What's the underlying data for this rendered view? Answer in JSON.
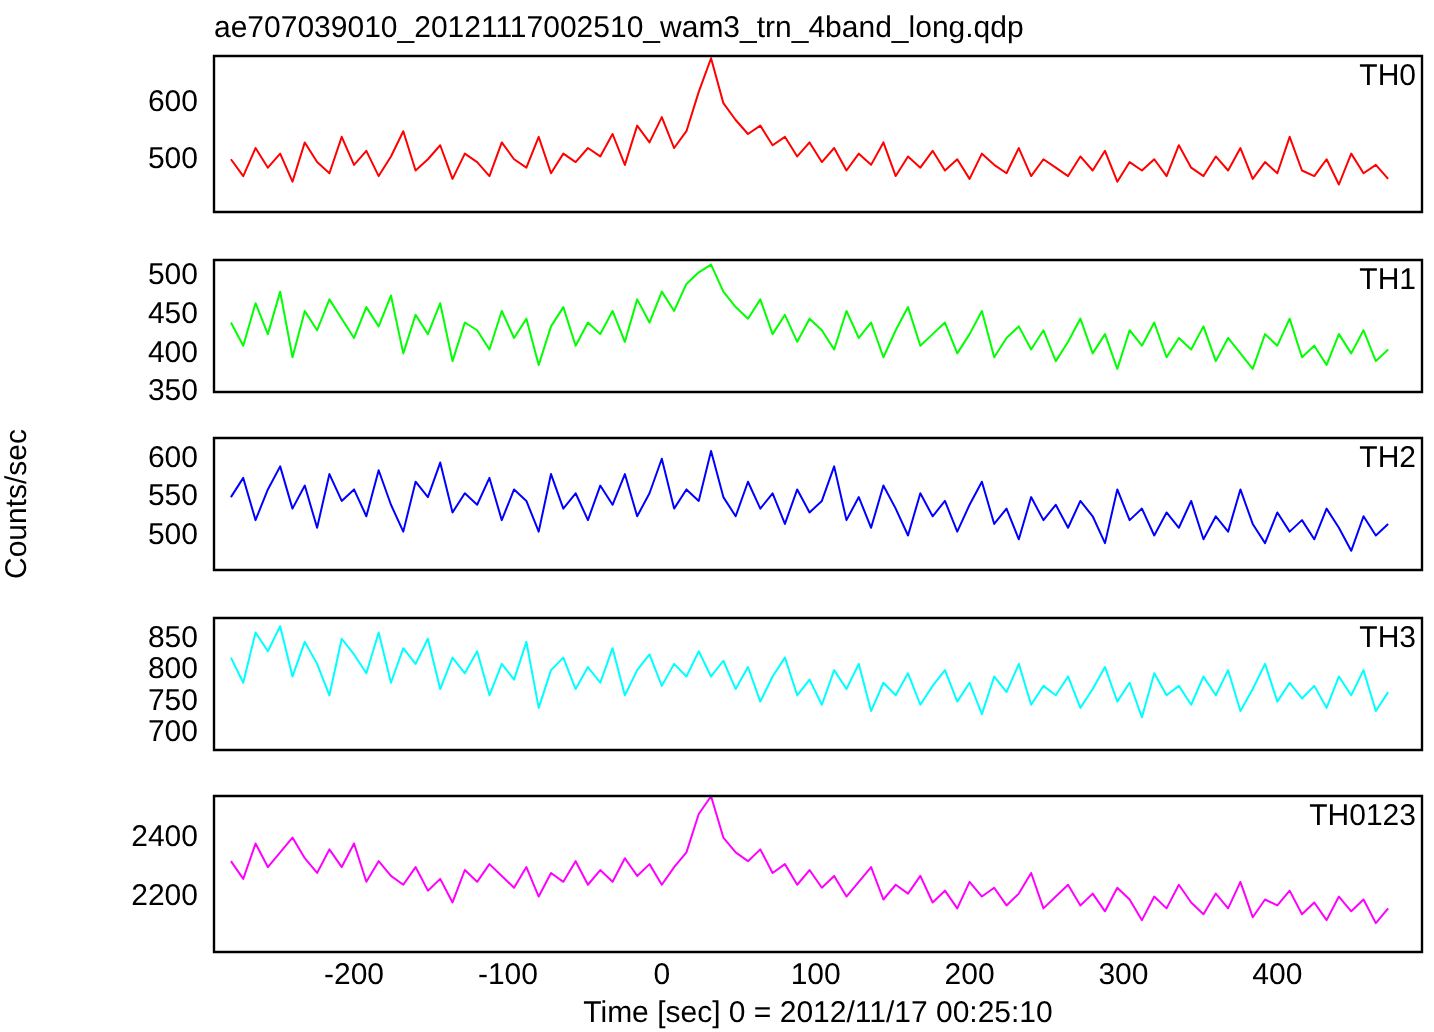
{
  "chart_data": [
    {
      "type": "line",
      "title": "ae707039010_20121117002510_wam3_trn_4band_long.qdp",
      "tick_labels": "y",
      "marker": "none",
      "line_style": "solid",
      "xlim": [
        -291,
        494
      ],
      "xticks": [
        -200,
        -100,
        0,
        100,
        200,
        300,
        400
      ],
      "ylim": [
        406,
        684
      ],
      "yticks": [
        500,
        600
      ],
      "x": [
        -280,
        -272,
        -264,
        -256,
        -248,
        -240,
        -232,
        -224,
        -216,
        -208,
        -200,
        -192,
        -184,
        -176,
        -168,
        -160,
        -152,
        -144,
        -136,
        -128,
        -120,
        -112,
        -104,
        -96,
        -88,
        -80,
        -72,
        -64,
        -56,
        -48,
        -40,
        -32,
        -24,
        -16,
        -8,
        0,
        8,
        16,
        24,
        32,
        40,
        48,
        56,
        64,
        72,
        80,
        88,
        96,
        104,
        112,
        120,
        128,
        136,
        144,
        152,
        160,
        168,
        176,
        184,
        192,
        200,
        208,
        216,
        224,
        232,
        240,
        248,
        256,
        264,
        272,
        280,
        288,
        296,
        304,
        312,
        320,
        328,
        336,
        344,
        352,
        360,
        368,
        376,
        384,
        392,
        400,
        408,
        416,
        424,
        432,
        440,
        448,
        456,
        464,
        472
      ],
      "series": [
        {
          "name": "TH0",
          "color": "#ff0000",
          "values": [
            500,
            470,
            520,
            485,
            510,
            460,
            530,
            495,
            475,
            540,
            490,
            515,
            470,
            505,
            550,
            480,
            500,
            525,
            465,
            510,
            495,
            470,
            530,
            500,
            485,
            540,
            475,
            510,
            495,
            520,
            505,
            545,
            490,
            560,
            530,
            575,
            520,
            550,
            620,
            680,
            600,
            570,
            545,
            560,
            525,
            540,
            505,
            530,
            495,
            520,
            480,
            510,
            490,
            530,
            470,
            505,
            485,
            515,
            480,
            500,
            465,
            510,
            490,
            475,
            520,
            470,
            500,
            485,
            470,
            505,
            480,
            515,
            460,
            495,
            480,
            500,
            470,
            525,
            485,
            470,
            505,
            480,
            520,
            465,
            495,
            475,
            540,
            480,
            470,
            500,
            455,
            510,
            475,
            490,
            465
          ]
        }
      ]
    },
    {
      "type": "line",
      "tick_labels": "y",
      "marker": "none",
      "line_style": "solid",
      "xlim": [
        -291,
        494
      ],
      "xticks": [
        -200,
        -100,
        0,
        100,
        200,
        300,
        400
      ],
      "ylim": [
        350,
        521
      ],
      "yticks": [
        350,
        400,
        450,
        500
      ],
      "x": [
        -280,
        -272,
        -264,
        -256,
        -248,
        -240,
        -232,
        -224,
        -216,
        -208,
        -200,
        -192,
        -184,
        -176,
        -168,
        -160,
        -152,
        -144,
        -136,
        -128,
        -120,
        -112,
        -104,
        -96,
        -88,
        -80,
        -72,
        -64,
        -56,
        -48,
        -40,
        -32,
        -24,
        -16,
        -8,
        0,
        8,
        16,
        24,
        32,
        40,
        48,
        56,
        64,
        72,
        80,
        88,
        96,
        104,
        112,
        120,
        128,
        136,
        144,
        152,
        160,
        168,
        176,
        184,
        192,
        200,
        208,
        216,
        224,
        232,
        240,
        248,
        256,
        264,
        272,
        280,
        288,
        296,
        304,
        312,
        320,
        328,
        336,
        344,
        352,
        360,
        368,
        376,
        384,
        392,
        400,
        408,
        416,
        424,
        432,
        440,
        448,
        456,
        464,
        472
      ],
      "series": [
        {
          "name": "TH1",
          "color": "#00ff00",
          "values": [
            440,
            410,
            465,
            425,
            480,
            395,
            455,
            430,
            470,
            445,
            420,
            460,
            435,
            475,
            400,
            450,
            425,
            465,
            390,
            440,
            430,
            405,
            455,
            420,
            445,
            385,
            435,
            460,
            410,
            440,
            425,
            455,
            415,
            470,
            440,
            480,
            455,
            490,
            505,
            515,
            480,
            460,
            445,
            470,
            425,
            450,
            415,
            445,
            430,
            405,
            455,
            420,
            440,
            395,
            430,
            460,
            410,
            425,
            440,
            400,
            425,
            455,
            395,
            420,
            435,
            405,
            430,
            390,
            415,
            445,
            400,
            425,
            380,
            430,
            410,
            440,
            395,
            420,
            405,
            435,
            390,
            420,
            400,
            380,
            425,
            410,
            445,
            395,
            410,
            385,
            425,
            400,
            430,
            390,
            405
          ]
        }
      ]
    },
    {
      "type": "line",
      "tick_labels": "y",
      "marker": "none",
      "line_style": "solid",
      "ylabel": "Counts/sec",
      "xlim": [
        -291,
        494
      ],
      "xticks": [
        -200,
        -100,
        0,
        100,
        200,
        300,
        400
      ],
      "ylim": [
        455,
        627
      ],
      "yticks": [
        500,
        550,
        600
      ],
      "x": [
        -280,
        -272,
        -264,
        -256,
        -248,
        -240,
        -232,
        -224,
        -216,
        -208,
        -200,
        -192,
        -184,
        -176,
        -168,
        -160,
        -152,
        -144,
        -136,
        -128,
        -120,
        -112,
        -104,
        -96,
        -88,
        -80,
        -72,
        -64,
        -56,
        -48,
        -40,
        -32,
        -24,
        -16,
        -8,
        0,
        8,
        16,
        24,
        32,
        40,
        48,
        56,
        64,
        72,
        80,
        88,
        96,
        104,
        112,
        120,
        128,
        136,
        144,
        152,
        160,
        168,
        176,
        184,
        192,
        200,
        208,
        216,
        224,
        232,
        240,
        248,
        256,
        264,
        272,
        280,
        288,
        296,
        304,
        312,
        320,
        328,
        336,
        344,
        352,
        360,
        368,
        376,
        384,
        392,
        400,
        408,
        416,
        424,
        432,
        440,
        448,
        456,
        464,
        472
      ],
      "series": [
        {
          "name": "TH2",
          "color": "#0000ff",
          "values": [
            550,
            575,
            520,
            560,
            590,
            535,
            565,
            510,
            580,
            545,
            560,
            525,
            585,
            540,
            505,
            570,
            550,
            595,
            530,
            555,
            540,
            575,
            520,
            560,
            545,
            505,
            580,
            535,
            555,
            520,
            565,
            540,
            580,
            525,
            555,
            600,
            535,
            560,
            545,
            610,
            550,
            525,
            570,
            535,
            555,
            515,
            560,
            530,
            545,
            590,
            520,
            550,
            510,
            565,
            535,
            500,
            555,
            525,
            545,
            505,
            540,
            570,
            515,
            535,
            495,
            550,
            520,
            540,
            510,
            545,
            525,
            490,
            560,
            520,
            535,
            500,
            530,
            510,
            545,
            495,
            525,
            505,
            560,
            515,
            490,
            530,
            505,
            520,
            495,
            535,
            510,
            480,
            525,
            500,
            515
          ]
        }
      ]
    },
    {
      "type": "line",
      "tick_labels": "y",
      "marker": "none",
      "line_style": "solid",
      "xlim": [
        -291,
        494
      ],
      "xticks": [
        -200,
        -100,
        0,
        100,
        200,
        300,
        400
      ],
      "ylim": [
        673,
        883
      ],
      "yticks": [
        700,
        750,
        800,
        850
      ],
      "x": [
        -280,
        -272,
        -264,
        -256,
        -248,
        -240,
        -232,
        -224,
        -216,
        -208,
        -200,
        -192,
        -184,
        -176,
        -168,
        -160,
        -152,
        -144,
        -136,
        -128,
        -120,
        -112,
        -104,
        -96,
        -88,
        -80,
        -72,
        -64,
        -56,
        -48,
        -40,
        -32,
        -24,
        -16,
        -8,
        0,
        8,
        16,
        24,
        32,
        40,
        48,
        56,
        64,
        72,
        80,
        88,
        96,
        104,
        112,
        120,
        128,
        136,
        144,
        152,
        160,
        168,
        176,
        184,
        192,
        200,
        208,
        216,
        224,
        232,
        240,
        248,
        256,
        264,
        272,
        280,
        288,
        296,
        304,
        312,
        320,
        328,
        336,
        344,
        352,
        360,
        368,
        376,
        384,
        392,
        400,
        408,
        416,
        424,
        432,
        440,
        448,
        456,
        464,
        472
      ],
      "series": [
        {
          "name": "TH3",
          "color": "#00ffff",
          "values": [
            820,
            780,
            860,
            830,
            870,
            790,
            845,
            810,
            760,
            850,
            825,
            795,
            860,
            780,
            835,
            810,
            850,
            770,
            820,
            795,
            830,
            760,
            810,
            785,
            845,
            740,
            800,
            820,
            770,
            805,
            780,
            835,
            760,
            800,
            825,
            775,
            810,
            790,
            830,
            790,
            815,
            770,
            805,
            750,
            790,
            820,
            760,
            785,
            745,
            800,
            770,
            810,
            735,
            780,
            760,
            795,
            745,
            775,
            800,
            750,
            780,
            730,
            790,
            765,
            810,
            745,
            775,
            760,
            790,
            740,
            770,
            805,
            750,
            780,
            725,
            795,
            760,
            775,
            745,
            790,
            760,
            800,
            735,
            770,
            810,
            750,
            780,
            755,
            775,
            740,
            790,
            760,
            800,
            735,
            765
          ]
        }
      ]
    },
    {
      "type": "line",
      "xlabel": "Time [sec] 0 = 2012/11/17 00:25:10",
      "marker": "none",
      "line_style": "solid",
      "xlim": [
        -291,
        494
      ],
      "xticks": [
        -200,
        -100,
        0,
        100,
        200,
        300,
        400
      ],
      "ylim": [
        2012,
        2541
      ],
      "yticks": [
        2200,
        2400
      ],
      "x": [
        -280,
        -272,
        -264,
        -256,
        -248,
        -240,
        -232,
        -224,
        -216,
        -208,
        -200,
        -192,
        -184,
        -176,
        -168,
        -160,
        -152,
        -144,
        -136,
        -128,
        -120,
        -112,
        -104,
        -96,
        -88,
        -80,
        -72,
        -64,
        -56,
        -48,
        -40,
        -32,
        -24,
        -16,
        -8,
        0,
        8,
        16,
        24,
        32,
        40,
        48,
        56,
        64,
        72,
        80,
        88,
        96,
        104,
        112,
        120,
        128,
        136,
        144,
        152,
        160,
        168,
        176,
        184,
        192,
        200,
        208,
        216,
        224,
        232,
        240,
        248,
        256,
        264,
        272,
        280,
        288,
        296,
        304,
        312,
        320,
        328,
        336,
        344,
        352,
        360,
        368,
        376,
        384,
        392,
        400,
        408,
        416,
        424,
        432,
        440,
        448,
        456,
        464,
        472
      ],
      "series": [
        {
          "name": "TH0123",
          "color": "#ff00ff",
          "values": [
            2320,
            2260,
            2380,
            2300,
            2350,
            2400,
            2330,
            2280,
            2360,
            2300,
            2380,
            2250,
            2320,
            2270,
            2240,
            2300,
            2220,
            2260,
            2180,
            2290,
            2250,
            2310,
            2270,
            2230,
            2300,
            2200,
            2280,
            2250,
            2320,
            2240,
            2290,
            2250,
            2330,
            2270,
            2310,
            2240,
            2300,
            2350,
            2480,
            2540,
            2400,
            2350,
            2320,
            2360,
            2280,
            2310,
            2240,
            2290,
            2230,
            2270,
            2200,
            2250,
            2300,
            2190,
            2240,
            2210,
            2270,
            2180,
            2220,
            2160,
            2250,
            2200,
            2230,
            2170,
            2210,
            2280,
            2160,
            2200,
            2240,
            2170,
            2210,
            2150,
            2230,
            2190,
            2120,
            2200,
            2160,
            2240,
            2180,
            2140,
            2210,
            2160,
            2250,
            2130,
            2190,
            2170,
            2220,
            2140,
            2180,
            2120,
            2200,
            2150,
            2190,
            2110,
            2160
          ]
        }
      ]
    }
  ]
}
